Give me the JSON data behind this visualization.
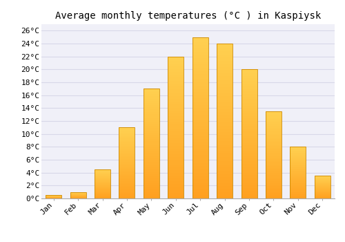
{
  "title": "Average monthly temperatures (°C ) in Kaspiysk",
  "months": [
    "Jan",
    "Feb",
    "Mar",
    "Apr",
    "May",
    "Jun",
    "Jul",
    "Aug",
    "Sep",
    "Oct",
    "Nov",
    "Dec"
  ],
  "values": [
    0.5,
    1.0,
    4.5,
    11.0,
    17.0,
    22.0,
    25.0,
    24.0,
    20.0,
    13.5,
    8.0,
    3.5
  ],
  "bar_color_top": "#FFD050",
  "bar_color_bottom": "#FFA020",
  "bar_edge_color": "#CC8800",
  "background_color": "#ffffff",
  "plot_bg_color": "#f0f0f8",
  "grid_color": "#d8d8e8",
  "ylim": [
    0,
    27
  ],
  "ytick_vals": [
    0,
    2,
    4,
    6,
    8,
    10,
    12,
    14,
    16,
    18,
    20,
    22,
    24,
    26
  ],
  "title_fontsize": 10,
  "tick_fontsize": 8,
  "font_family": "monospace"
}
